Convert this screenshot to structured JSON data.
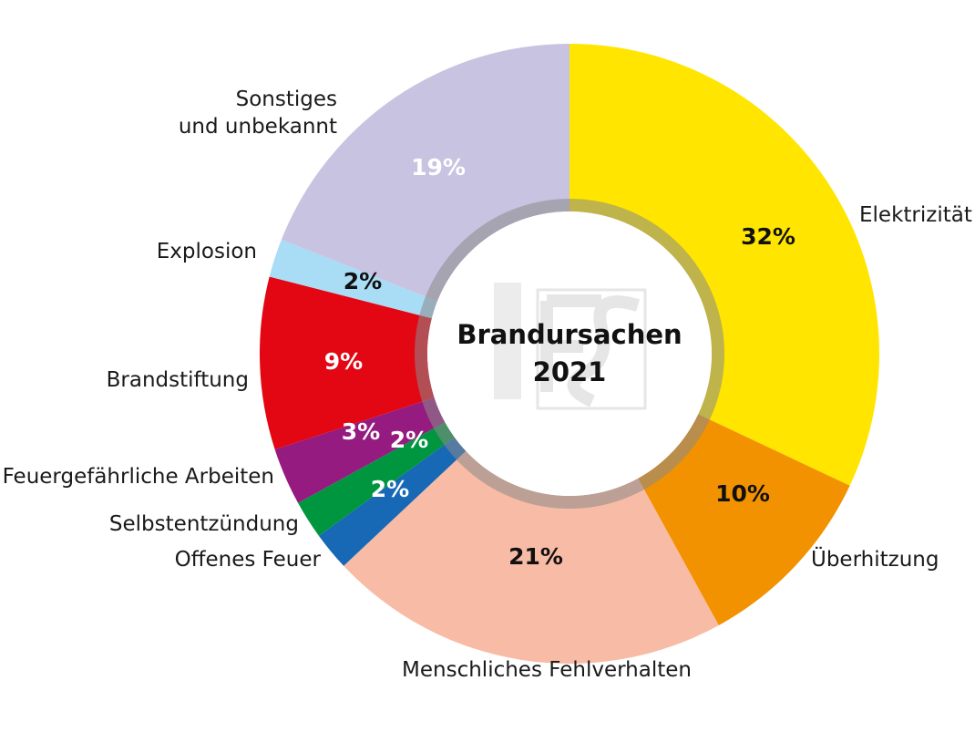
{
  "chart_data": {
    "type": "pie",
    "variant": "donut",
    "title": "Brandursachen",
    "title_year": "2021",
    "unit": "%",
    "slices": [
      {
        "label": "Elektrizität",
        "value": 32,
        "display": "32%",
        "color": "#FFE500",
        "text_color": "#111111"
      },
      {
        "label": "Überhitzung",
        "value": 10,
        "display": "10%",
        "color": "#F29200",
        "text_color": "#111111"
      },
      {
        "label": "Menschliches Fehlverhalten",
        "value": 21,
        "display": "21%",
        "color": "#F8BBA5",
        "text_color": "#111111"
      },
      {
        "label": "Offenes Feuer",
        "value": 2,
        "display": "2%",
        "color": "#1768B5",
        "text_color": "#ffffff"
      },
      {
        "label": "Selbstentzündung",
        "value": 2,
        "display": "2%",
        "color": "#009640",
        "text_color": "#ffffff"
      },
      {
        "label": "Feuergefährliche Arbeiten",
        "value": 3,
        "display": "3%",
        "color": "#951B81",
        "text_color": "#ffffff"
      },
      {
        "label": "Brandstiftung",
        "value": 9,
        "display": "9%",
        "color": "#E30613",
        "text_color": "#ffffff"
      },
      {
        "label": "Explosion",
        "value": 2,
        "display": "2%",
        "color": "#A9DCF5",
        "text_color": "#111111"
      },
      {
        "label": "Sonstiges\nund unbekannt",
        "value": 19,
        "display": "19%",
        "color": "#C9C3E2",
        "text_color": "#ffffff"
      }
    ],
    "watermark": "IFS"
  }
}
